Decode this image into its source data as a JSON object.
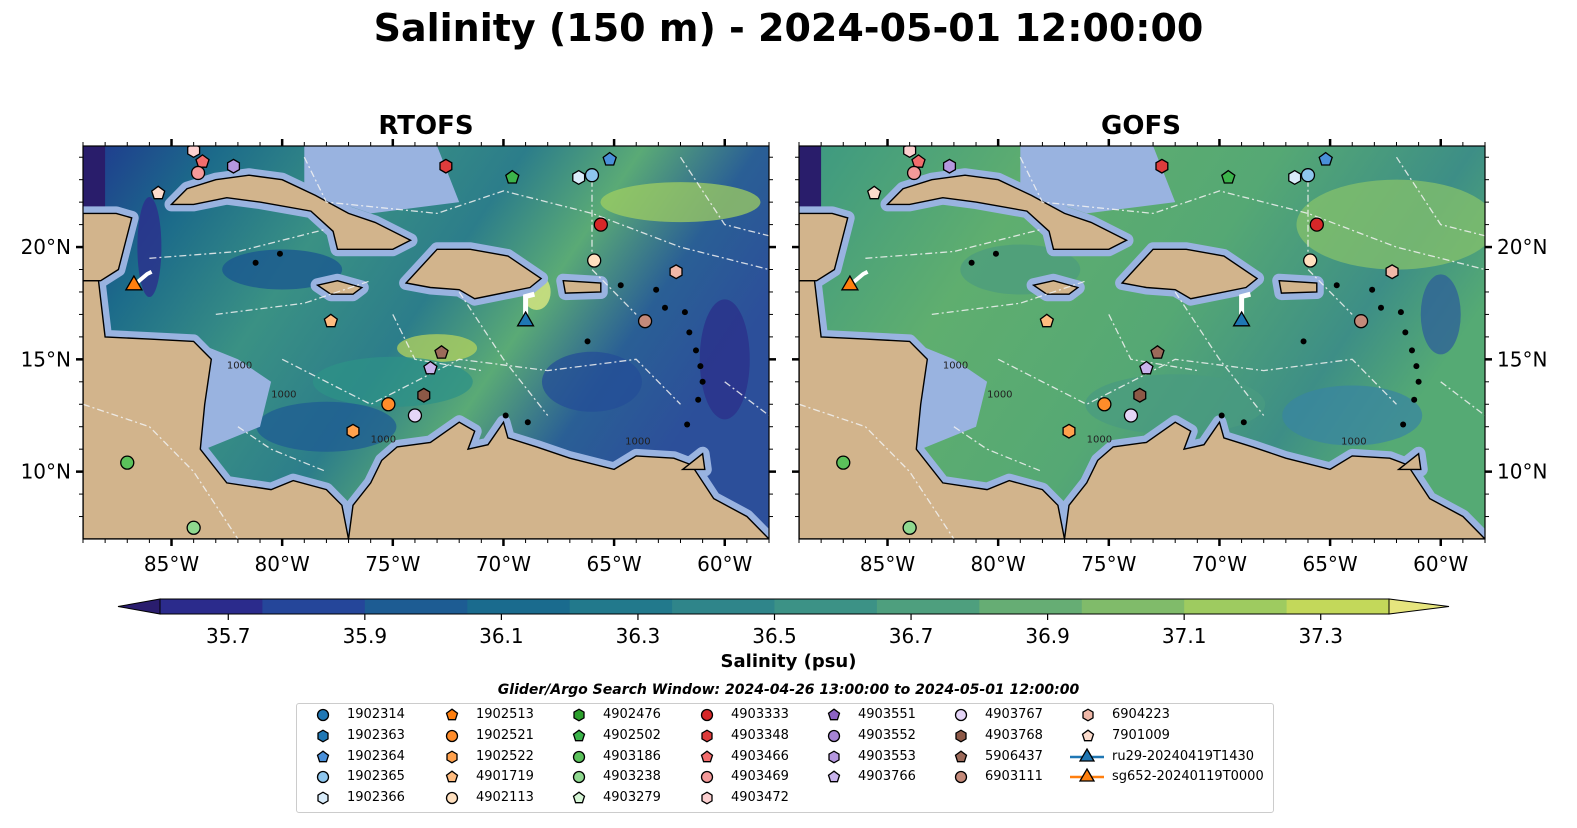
{
  "title": "Salinity (150 m) - 2024-05-01 12:00:00",
  "panels": [
    {
      "name": "RTOFS",
      "theme": "rtofs"
    },
    {
      "name": "GOFS",
      "theme": "gofs"
    }
  ],
  "map": {
    "lon_range": [
      -89,
      -58
    ],
    "lat_range": [
      7,
      24.5
    ],
    "lon_ticks": [
      -85,
      -80,
      -75,
      -70,
      -65,
      -60
    ],
    "lon_tick_labels": [
      "85°W",
      "80°W",
      "75°W",
      "70°W",
      "65°W",
      "60°W"
    ],
    "lat_ticks": [
      10,
      15,
      20
    ],
    "lat_tick_labels": [
      "10°N",
      "15°N",
      "20°N"
    ],
    "land_color": "#d2b48c",
    "shelf_color": "#99b3e0",
    "deep_color": "#291d6b",
    "depth_labels": [
      "1000",
      "1000",
      "1000",
      "1000"
    ],
    "bathymetry_label": "-1000"
  },
  "colorbar": {
    "label": "Salinity (psu)",
    "ticks": [
      "35.7",
      "35.9",
      "36.1",
      "36.3",
      "36.5",
      "36.7",
      "36.9",
      "37.1",
      "37.3"
    ],
    "min": 35.6,
    "max": 37.4,
    "extend": "both",
    "colors": [
      "#2a1d6e",
      "#2b2b8c",
      "#25469a",
      "#1d5c93",
      "#1a6b8e",
      "#22798c",
      "#2f858a",
      "#3c9286",
      "#4e9f7e",
      "#66ad74",
      "#80bb6a",
      "#9ecb60",
      "#c3d85a",
      "#e6e57e"
    ]
  },
  "search_window": "Glider/Argo Search Window: 2024-04-26 13:00:00 to 2024-05-01 12:00:00",
  "gliders": [
    {
      "id": "ru29-20240419T1430",
      "lon": -69.0,
      "lat": 16.7,
      "color": "#1f77b4"
    },
    {
      "id": "sg652-20240119T0000",
      "lon": -86.7,
      "lat": 18.3,
      "color": "#ff7f0e"
    }
  ],
  "floats": [
    {
      "id": "1902314",
      "shape": "circle",
      "color": "#1f77b4"
    },
    {
      "id": "1902363",
      "shape": "hexagon",
      "color": "#1f77b4"
    },
    {
      "id": "1902364",
      "shape": "pentagon",
      "color": "#4a90d9",
      "lon": -65.2,
      "lat": 23.9
    },
    {
      "id": "1902365",
      "shape": "circle",
      "color": "#8ec6ee",
      "lon": -66.0,
      "lat": 23.2
    },
    {
      "id": "1902366",
      "shape": "hexagon",
      "color": "#d9ecfa",
      "lon": -66.6,
      "lat": 23.1
    },
    {
      "id": "1902513",
      "shape": "pentagon",
      "color": "#ff7f0e"
    },
    {
      "id": "1902521",
      "shape": "circle",
      "color": "#ff8c2a",
      "lon": -75.2,
      "lat": 13.0
    },
    {
      "id": "1902522",
      "shape": "hexagon",
      "color": "#ffa14d",
      "lon": -76.8,
      "lat": 11.8
    },
    {
      "id": "4901719",
      "shape": "pentagon",
      "color": "#ffbc80",
      "lon": -77.8,
      "lat": 16.7
    },
    {
      "id": "4902113",
      "shape": "circle",
      "color": "#ffe0bf",
      "lon": -65.9,
      "lat": 19.4
    },
    {
      "id": "4902476",
      "shape": "hexagon",
      "color": "#2ca02c"
    },
    {
      "id": "4902502",
      "shape": "pentagon",
      "color": "#3cb44b",
      "lon": -69.6,
      "lat": 23.1
    },
    {
      "id": "4903186",
      "shape": "circle",
      "color": "#5bc15b",
      "lon": -87.0,
      "lat": 10.4
    },
    {
      "id": "4903238",
      "shape": "circle",
      "color": "#8fd88f",
      "lon": -84.0,
      "lat": 7.5
    },
    {
      "id": "4903279",
      "shape": "pentagon",
      "color": "#d5f5d5"
    },
    {
      "id": "4903333",
      "shape": "circle",
      "color": "#d62728",
      "lon": -65.6,
      "lat": 21.0
    },
    {
      "id": "4903348",
      "shape": "hexagon",
      "color": "#de3c3c",
      "lon": -72.6,
      "lat": 23.6
    },
    {
      "id": "4903466",
      "shape": "pentagon",
      "color": "#f26d6d",
      "lon": -83.6,
      "lat": 23.8
    },
    {
      "id": "4903469",
      "shape": "circle",
      "color": "#f49a9a",
      "lon": -83.8,
      "lat": 23.3
    },
    {
      "id": "4903472",
      "shape": "hexagon",
      "color": "#fcd0d0",
      "lon": -84.0,
      "lat": 24.3
    },
    {
      "id": "4903551",
      "shape": "pentagon",
      "color": "#8c63c4"
    },
    {
      "id": "4903552",
      "shape": "circle",
      "color": "#a684d4"
    },
    {
      "id": "4903553",
      "shape": "hexagon",
      "color": "#b597df",
      "lon": -82.2,
      "lat": 23.6
    },
    {
      "id": "4903766",
      "shape": "pentagon",
      "color": "#c9b3ec",
      "lon": -73.3,
      "lat": 14.6
    },
    {
      "id": "4903767",
      "shape": "circle",
      "color": "#e5d5f7",
      "lon": -74.0,
      "lat": 12.5
    },
    {
      "id": "4903768",
      "shape": "hexagon",
      "color": "#8c5846",
      "lon": -73.6,
      "lat": 13.4
    },
    {
      "id": "5906437",
      "shape": "pentagon",
      "color": "#9c6a5a",
      "lon": -72.8,
      "lat": 15.3
    },
    {
      "id": "6903111",
      "shape": "circle",
      "color": "#c48a7a",
      "lon": -63.6,
      "lat": 16.7
    },
    {
      "id": "6904223",
      "shape": "hexagon",
      "color": "#f0b8a8",
      "lon": -62.2,
      "lat": 18.9
    },
    {
      "id": "7901009",
      "shape": "pentagon",
      "color": "#fcdccd",
      "lon": -85.6,
      "lat": 22.4
    }
  ]
}
